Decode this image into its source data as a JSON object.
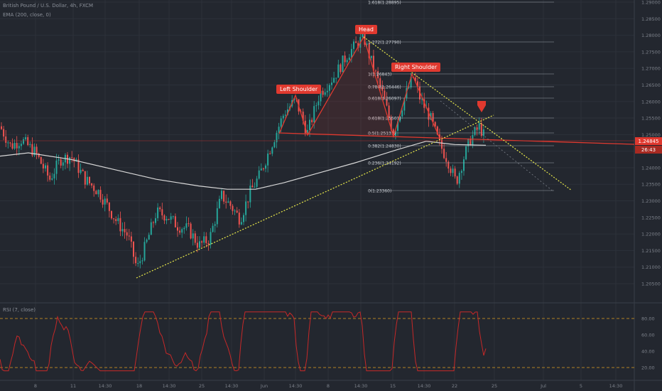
{
  "header": {
    "symbol": "British Pound / U.S. Dollar, 4h, FXCM",
    "indicator": "EMA (200, close, 0)",
    "rsi_label": "RSI (7, close)"
  },
  "price_tags": {
    "last": "1.24845",
    "countdown": "26:43"
  },
  "annotations": {
    "head": "Head",
    "left_shoulder": "Left Shoulder",
    "right_shoulder": "Right Shoulder"
  },
  "colors": {
    "background": "#23272f",
    "up": "#26a69a",
    "down": "#ef5350",
    "pattern": "#e0392f",
    "trendline": "#e8e84a",
    "ema": "#d8d8d8",
    "rsi": "#c62828",
    "rsi_band": "#e0a020"
  },
  "chart_data": {
    "type": "candlestick",
    "timeframe": "4h",
    "y_axis": {
      "range": [
        1.2,
        1.29
      ],
      "ticks": [
        "1.29000",
        "1.28500",
        "1.28000",
        "1.27500",
        "1.27000",
        "1.26500",
        "1.26000",
        "1.25500",
        "1.25000",
        "1.24500",
        "1.24000",
        "1.23500",
        "1.23000",
        "1.22500",
        "1.22000",
        "1.21500",
        "1.21000",
        "1.20500"
      ]
    },
    "x_axis": {
      "ticks": [
        "8",
        "11",
        "14:30",
        "18",
        "14:30",
        "25",
        "14:30",
        "Jun",
        "14:30",
        "8",
        "14:30",
        "15",
        "14:30",
        "22",
        "25",
        "Jul",
        "5",
        "14:30"
      ]
    },
    "fibonacci": [
      {
        "label": "1.618(1.28895)",
        "price": 1.28895
      },
      {
        "label": "1.272(1.27790)",
        "price": 1.2779
      },
      {
        "label": "1(1.26843)",
        "price": 1.26843
      },
      {
        "label": "0.786(1.26446)",
        "price": 1.26446
      },
      {
        "label": "0.618(1.26097)",
        "price": 1.26097
      },
      {
        "label": "0.618(1.25501)",
        "price": 1.25501
      },
      {
        "label": "0.5(1.25131)",
        "price": 1.25131
      },
      {
        "label": "0.382(1.24830)",
        "price": 1.2483
      },
      {
        "label": "0.236(1.24192)",
        "price": 1.24192
      },
      {
        "label": "0(1.23360)",
        "price": 1.2336
      }
    ],
    "rsi": {
      "ticks": [
        "80.00",
        "60.00",
        "40.00",
        "20.00"
      ],
      "upper_band": 80,
      "lower_band": 20
    }
  }
}
